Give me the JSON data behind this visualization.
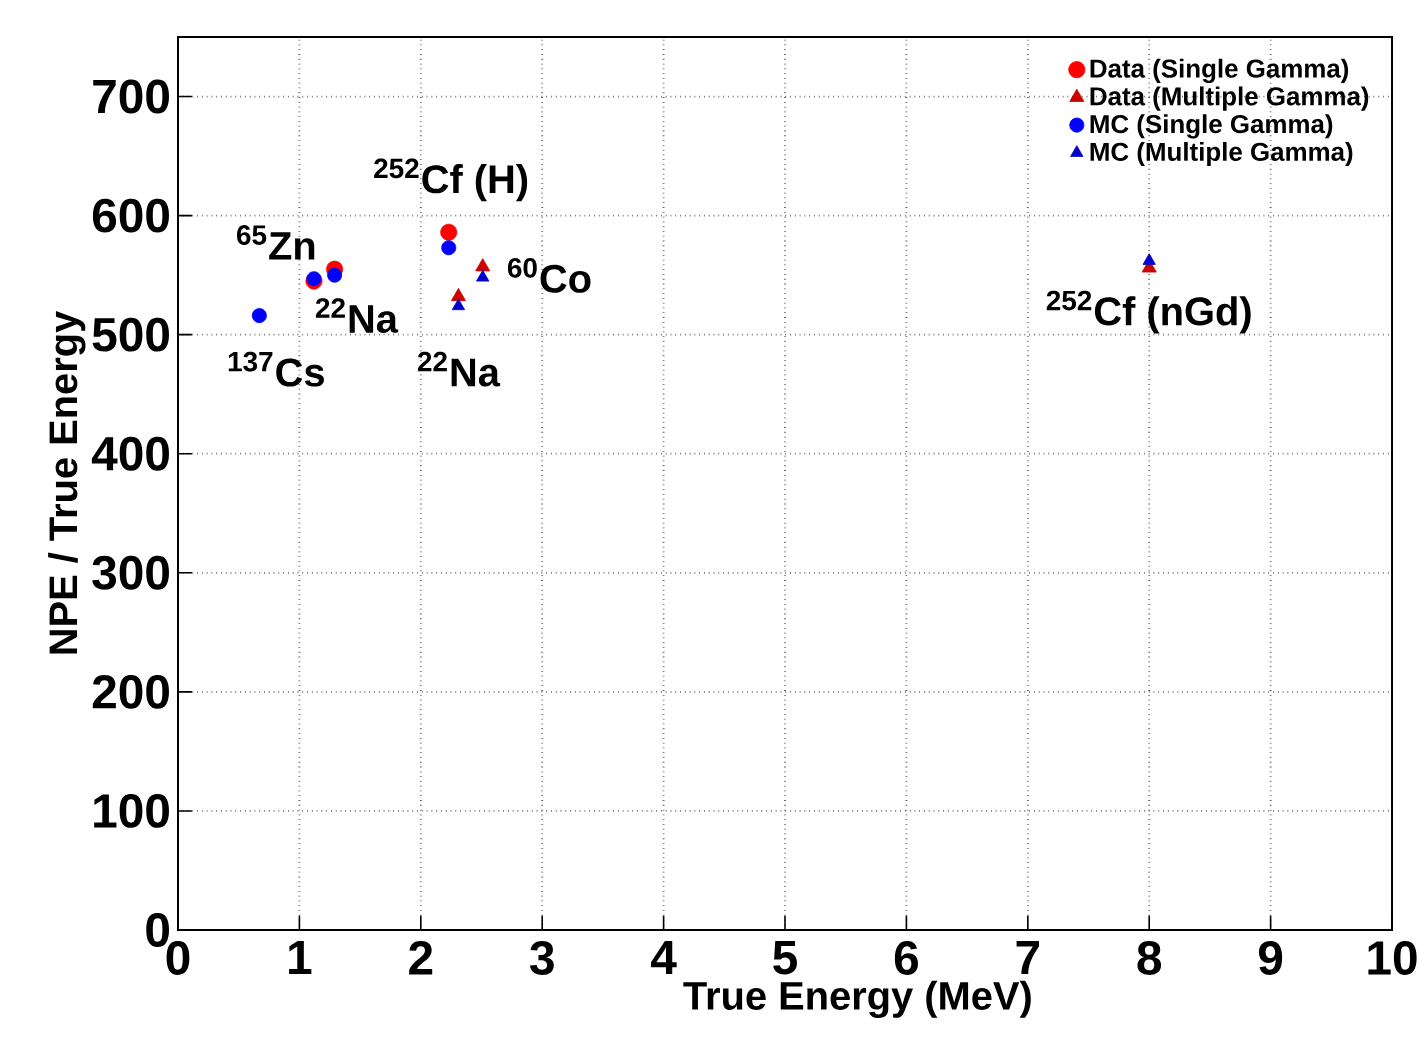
{
  "chart_data": {
    "type": "scatter",
    "xlabel": "True Energy (MeV)",
    "ylabel": "NPE / True Energy",
    "xlim": [
      0,
      10
    ],
    "ylim": [
      0,
      750
    ],
    "xticks": [
      0,
      1,
      2,
      3,
      4,
      5,
      6,
      7,
      8,
      9,
      {
        "value": 10,
        "label": "10"
      }
    ],
    "yticks": [
      0,
      100,
      200,
      300,
      400,
      500,
      600,
      700
    ],
    "grid": true,
    "legend": "top right",
    "series": [
      {
        "name": "Data (Single Gamma)",
        "color": "#ff0000",
        "marker": "circle",
        "x": [
          1.12,
          1.29,
          2.23
        ],
        "values": [
          545,
          555,
          586
        ]
      },
      {
        "name": "Data (Multiple Gamma)",
        "color": "#cc0000",
        "marker": "triangle",
        "x": [
          2.31,
          2.51,
          8.0
        ],
        "values": [
          532,
          557,
          556
        ]
      },
      {
        "name": "MC (Single Gamma)",
        "color": "#0000ff",
        "marker": "circle",
        "x": [
          0.67,
          1.12,
          1.29,
          2.23
        ],
        "values": [
          516,
          547,
          550,
          573
        ]
      },
      {
        "name": "MC (Multiple Gamma)",
        "color": "#0000cc",
        "marker": "triangle",
        "x": [
          2.31,
          2.51,
          8.0
        ],
        "values": [
          524,
          548,
          562
        ]
      }
    ],
    "annotations": [
      "$^{252}$Cf (H)",
      "$^{65}$Zn",
      "$^{22}$Na",
      "$^{137}$Cs",
      "$^{22}$Na",
      "$^{60}$Co",
      "$^{252}$Cf (nGd)"
    ]
  }
}
